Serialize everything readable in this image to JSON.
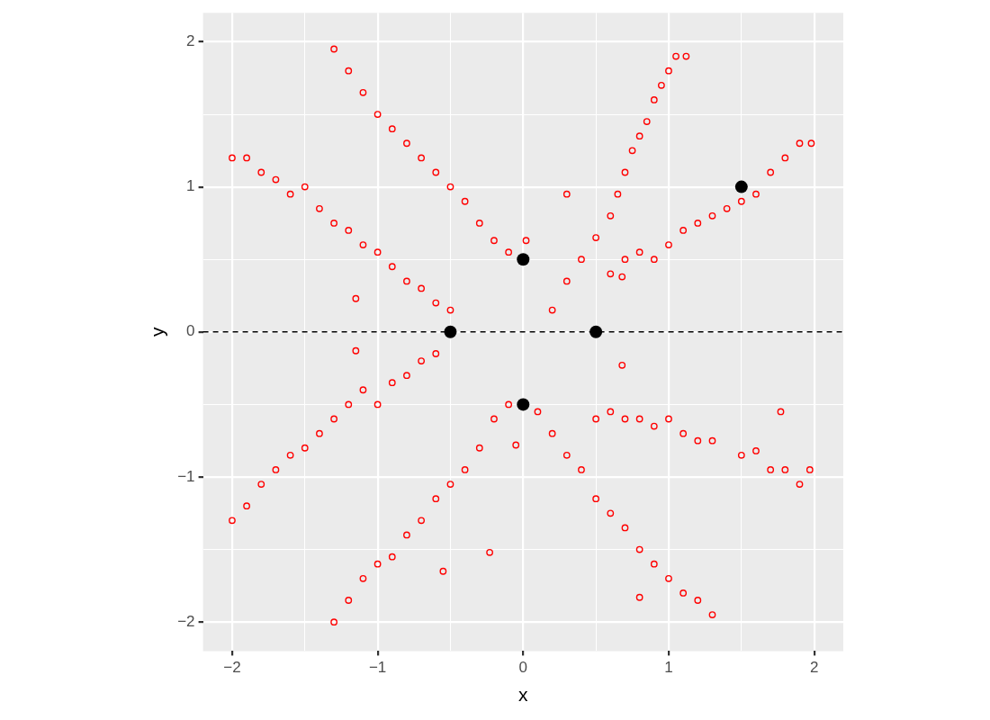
{
  "chart_data": {
    "type": "scatter",
    "xlabel": "x",
    "ylabel": "y",
    "xlim": [
      -2.2,
      2.2
    ],
    "ylim": [
      -2.2,
      2.2
    ],
    "xticks": [
      {
        "value": -2,
        "label": "−2"
      },
      {
        "value": -1.5,
        "label": null
      },
      {
        "value": -1,
        "label": "−1"
      },
      {
        "value": -0.5,
        "label": null
      },
      0,
      {
        "value": 0.5,
        "label": null
      },
      1,
      {
        "value": 1.5,
        "label": null
      },
      2
    ],
    "yticks": [
      {
        "value": -2,
        "label": "−2"
      },
      {
        "value": -1.5,
        "label": null
      },
      {
        "value": -1,
        "label": "−1"
      },
      {
        "value": -0.5,
        "label": null
      },
      0,
      {
        "value": 0.5,
        "label": null
      },
      1,
      {
        "value": 1.5,
        "label": null
      },
      2
    ],
    "grid": true,
    "legend": false,
    "marker": "circle",
    "ref_lines": [
      {
        "axis": "y",
        "value": 0,
        "color": "#000000",
        "line_style": "dashed"
      }
    ],
    "series": [
      {
        "type": "scatter",
        "color": "#ff0000",
        "x": [
          -1.3,
          -1.2,
          -1.1,
          -1.0,
          -0.9,
          -0.8,
          -0.7,
          -0.6,
          -0.5,
          -0.4,
          -0.3,
          -0.2,
          -0.1,
          0.02,
          -2,
          -1.9,
          -1.8,
          -1.7,
          -1.6,
          -1.5,
          -1.4,
          -1.3,
          -1.2,
          -1.1,
          -1.0,
          -0.9,
          -0.8,
          -0.7,
          -0.6,
          -0.5,
          -1.15,
          -2,
          -1.9,
          -1.8,
          -1.7,
          -1.6,
          -1.5,
          -1.4,
          -1.3,
          -1.2,
          -1.1,
          -1.0,
          -0.9,
          -0.8,
          -0.7,
          -0.6,
          -1.15,
          -1.3,
          -1.2,
          -1.1,
          -1.0,
          -0.9,
          -0.8,
          -0.7,
          -0.6,
          -0.5,
          -0.4,
          -0.3,
          -0.2,
          -0.1,
          -0.23,
          -0.55,
          -0.05,
          0.1,
          0.2,
          0.3,
          0.4,
          0.5,
          0.6,
          0.7,
          0.8,
          0.9,
          1.0,
          1.1,
          1.2,
          1.3,
          0.8,
          0.5,
          0.6,
          0.7,
          0.8,
          0.9,
          1.0,
          1.1,
          1.2,
          1.3,
          1.5,
          1.6,
          1.7,
          1.8,
          1.9,
          1.97,
          1.77,
          0.68,
          0.6,
          0.7,
          0.8,
          0.9,
          1.0,
          1.1,
          1.2,
          1.3,
          1.4,
          1.5,
          1.6,
          1.7,
          1.8,
          1.9,
          1.98,
          0.2,
          0.3,
          0.4,
          0.5,
          0.6,
          0.65,
          0.7,
          0.75,
          0.8,
          0.85,
          0.9,
          0.95,
          1.0,
          1.05,
          1.12,
          0.3,
          0.68
        ],
        "values": [
          1.95,
          1.8,
          1.65,
          1.5,
          1.4,
          1.3,
          1.2,
          1.1,
          1.0,
          0.9,
          0.75,
          0.63,
          0.55,
          0.63,
          1.2,
          1.2,
          1.1,
          1.05,
          0.95,
          1.0,
          0.85,
          0.75,
          0.7,
          0.6,
          0.55,
          0.45,
          0.35,
          0.3,
          0.2,
          0.15,
          0.23,
          -1.3,
          -1.2,
          -1.05,
          -0.95,
          -0.85,
          -0.8,
          -0.7,
          -0.6,
          -0.5,
          -0.4,
          -0.5,
          -0.35,
          -0.3,
          -0.2,
          -0.15,
          -0.13,
          -2,
          -1.85,
          -1.7,
          -1.6,
          -1.55,
          -1.4,
          -1.3,
          -1.15,
          -1.05,
          -0.95,
          -0.8,
          -0.6,
          -0.5,
          -1.52,
          -1.65,
          -0.78,
          -0.55,
          -0.7,
          -0.85,
          -0.95,
          -1.15,
          -1.25,
          -1.35,
          -1.5,
          -1.6,
          -1.7,
          -1.8,
          -1.85,
          -1.95,
          -1.83,
          -0.6,
          -0.55,
          -0.6,
          -0.6,
          -0.65,
          -0.6,
          -0.7,
          -0.75,
          -0.75,
          -0.85,
          -0.82,
          -0.95,
          -0.95,
          -1.05,
          -0.95,
          -0.55,
          -0.23,
          0.4,
          0.5,
          0.55,
          0.5,
          0.6,
          0.7,
          0.75,
          0.8,
          0.85,
          0.9,
          0.95,
          1.1,
          1.2,
          1.3,
          1.3,
          0.15,
          0.35,
          0.5,
          0.65,
          0.8,
          0.95,
          1.1,
          1.25,
          1.35,
          1.45,
          1.6,
          1.7,
          1.8,
          1.9,
          1.9,
          0.95,
          0.38
        ]
      },
      {
        "type": "scatter",
        "color": "#000000",
        "x": [
          0,
          0,
          -0.5,
          0.5,
          1.5
        ],
        "values": [
          0.5,
          -0.5,
          0,
          0,
          1
        ]
      }
    ]
  }
}
